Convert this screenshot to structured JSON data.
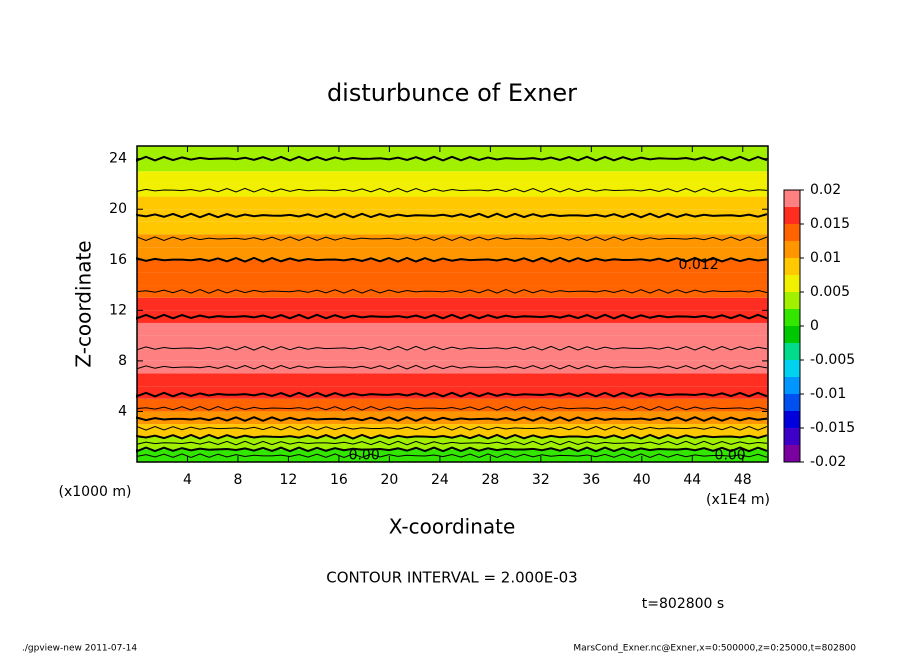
{
  "chart_data": {
    "type": "contour",
    "title": "disturbunce of Exner",
    "x_label": "X-coordinate",
    "y_label": "Z-coordinate",
    "x_unit": "(x1E4 m)",
    "y_unit": "(x1000 m)",
    "xlim": [
      0,
      50
    ],
    "ylim": [
      0,
      25
    ],
    "xticks": [
      4,
      8,
      12,
      16,
      20,
      24,
      28,
      32,
      36,
      40,
      44,
      48
    ],
    "yticks": [
      4,
      8,
      12,
      16,
      20,
      24
    ],
    "z": [
      0,
      1,
      2,
      3,
      4,
      5,
      6,
      7,
      8,
      9,
      10,
      11,
      12,
      13,
      14,
      15,
      16,
      17,
      18,
      19,
      20,
      21,
      22,
      23,
      24,
      25
    ],
    "values": [
      0.0,
      0.004,
      0.008,
      0.011,
      0.0135,
      0.0155,
      0.017,
      0.0178,
      0.0182,
      0.018,
      0.0175,
      0.0165,
      0.0155,
      0.0145,
      0.0135,
      0.0125,
      0.012,
      0.011,
      0.0095,
      0.0085,
      0.0075,
      0.0065,
      0.0055,
      0.0045,
      0.004,
      0.0035
    ],
    "contour_levels": [
      0.002,
      0.004,
      0.006,
      0.008,
      0.01,
      0.012,
      0.014,
      0.016,
      0.018
    ],
    "contour_interval": {
      "value": 0.002,
      "label": "CONTOUR INTERVAL = 2.000E-03"
    },
    "contour_labels": [
      {
        "text": "0.012",
        "x": 44.5,
        "z": 15.6
      },
      {
        "text": "0.00",
        "x": 18,
        "z": 0.5
      },
      {
        "text": "0.00",
        "x": 47,
        "z": 0.5
      }
    ],
    "colorbar": {
      "lim": [
        -0.02,
        0.02
      ],
      "ticks": [
        0.02,
        0.015,
        0.01,
        0.005,
        0,
        -0.005,
        -0.01,
        -0.015,
        -0.02
      ],
      "levels": [
        -0.02,
        -0.0175,
        -0.015,
        -0.0125,
        -0.01,
        -0.0075,
        -0.005,
        -0.0025,
        0,
        0.0025,
        0.005,
        0.0075,
        0.01,
        0.0125,
        0.015,
        0.0175,
        0.02
      ],
      "colors": [
        "#7a00a0",
        "#3c00c8",
        "#0000dc",
        "#0050f0",
        "#0096ff",
        "#00d2f0",
        "#00dc8c",
        "#00c800",
        "#32e600",
        "#a0f000",
        "#f0f000",
        "#ffc800",
        "#ff9600",
        "#ff6400",
        "#ff2e20",
        "#ff8080"
      ]
    },
    "time_label": "t=802800 s",
    "footer_left": "./gpview-new   2011-07-14",
    "footer_right": "MarsCond_Exner.nc@Exner,x=0:500000,z=0:25000,t=802800"
  }
}
